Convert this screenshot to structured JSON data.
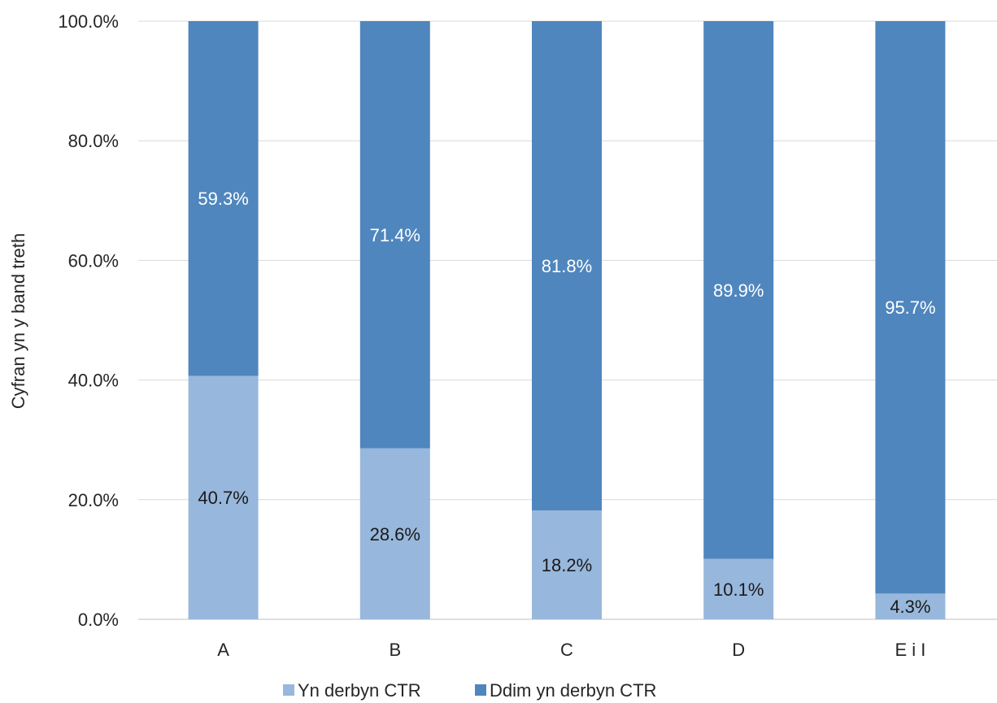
{
  "chart_data": {
    "type": "bar",
    "stacked": true,
    "percent": true,
    "categories": [
      "A",
      "B",
      "C",
      "D",
      "E i I"
    ],
    "series": [
      {
        "name": "Yn derbyn CTR",
        "color": "#98b7dc",
        "label_color": "#1a1a1a",
        "values": [
          40.7,
          28.6,
          18.2,
          10.1,
          4.3
        ],
        "labels": [
          "40.7%",
          "28.6%",
          "18.2%",
          "10.1%",
          "4.3%"
        ]
      },
      {
        "name": "Ddim yn derbyn CTR",
        "color": "#4f86bd",
        "label_color": "#ffffff",
        "values": [
          59.3,
          71.4,
          81.8,
          89.9,
          95.7
        ],
        "labels": [
          "59.3%",
          "71.4%",
          "81.8%",
          "89.9%",
          "95.7%"
        ]
      }
    ],
    "ylabel": "Cyfran yn y band treth",
    "xlabel": "",
    "ylim": [
      0,
      100
    ],
    "yticks": [
      0,
      20,
      40,
      60,
      80,
      100
    ],
    "ytick_labels": [
      "0.0%",
      "20.0%",
      "40.0%",
      "60.0%",
      "80.0%",
      "100.0%"
    ],
    "grid": true,
    "legend": "bottom"
  }
}
